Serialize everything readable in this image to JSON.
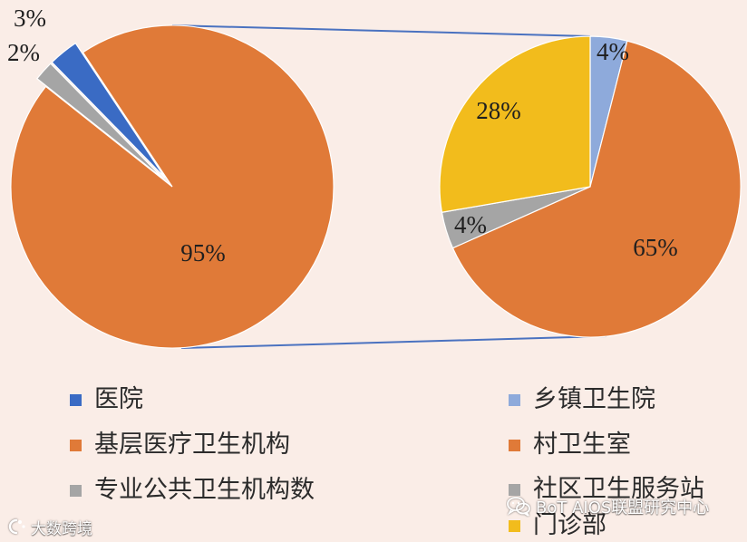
{
  "chart_data": [
    {
      "type": "pie",
      "categories": [
        "医院",
        "基层医疗卫生机构",
        "专业公共卫生机构数"
      ],
      "values": [
        3,
        95,
        2
      ],
      "data_labels": [
        "3%",
        "95%",
        "2%"
      ],
      "colors": [
        "#3a6bc4",
        "#e07a38",
        "#a5a5a5"
      ],
      "exploded": [
        true,
        false,
        true
      ],
      "legend": "bottom-left"
    },
    {
      "type": "pie",
      "categories": [
        "乡镇卫生院",
        "村卫生室",
        "社区卫生服务站",
        "门诊部"
      ],
      "values": [
        4,
        65,
        4,
        28
      ],
      "data_labels": [
        "4%",
        "65%",
        "4%",
        "28%"
      ],
      "colors": [
        "#8eaadb",
        "#e07a38",
        "#a5a5a5",
        "#f2bc1c"
      ],
      "exploded": [
        false,
        false,
        false,
        false
      ],
      "legend": "bottom-right"
    }
  ],
  "connector_color": "#4a72c0",
  "background_color": "#faede7",
  "watermarks": {
    "left_icon": "brand-logo-icon",
    "left": "大数跨境",
    "right_icon": "wechat-icon",
    "right": "BoT AIOS联盟研究中心"
  }
}
